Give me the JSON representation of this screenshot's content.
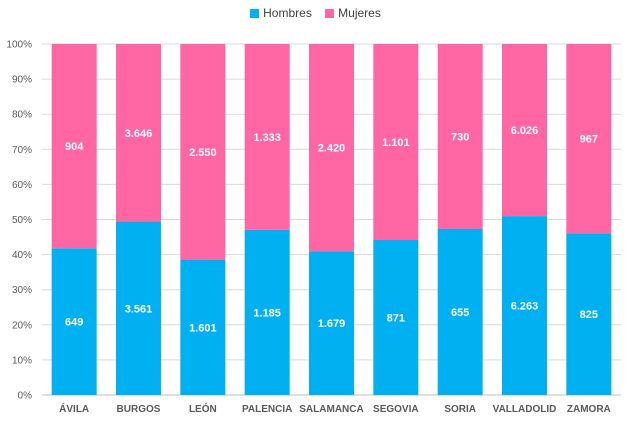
{
  "chart_data": {
    "type": "bar",
    "stacked": "percent",
    "categories": [
      "ÁVILA",
      "BURGOS",
      "LEÓN",
      "PALENCIA",
      "SALAMANCA",
      "SEGOVIA",
      "SORIA",
      "VALLADOLID",
      "ZAMORA"
    ],
    "series": [
      {
        "name": "Hombres",
        "color": "#00B0F0",
        "values": [
          649,
          3561,
          1601,
          1185,
          1679,
          871,
          655,
          6263,
          825
        ],
        "labels": [
          "649",
          "3.561",
          "1.601",
          "1.185",
          "1.679",
          "871",
          "655",
          "6.263",
          "825"
        ]
      },
      {
        "name": "Mujeres",
        "color": "#FF66A3",
        "values": [
          904,
          3646,
          2550,
          1333,
          2420,
          1101,
          730,
          6026,
          967
        ],
        "labels": [
          "904",
          "3.646",
          "2.550",
          "1.333",
          "2.420",
          "1.101",
          "730",
          "6.026",
          "967"
        ]
      }
    ],
    "y_ticks": [
      "0%",
      "10%",
      "20%",
      "30%",
      "40%",
      "50%",
      "60%",
      "70%",
      "80%",
      "90%",
      "100%"
    ],
    "ylim": [
      0,
      100
    ],
    "legend_position": "top-center",
    "title": "",
    "xlabel": "",
    "ylabel": ""
  }
}
